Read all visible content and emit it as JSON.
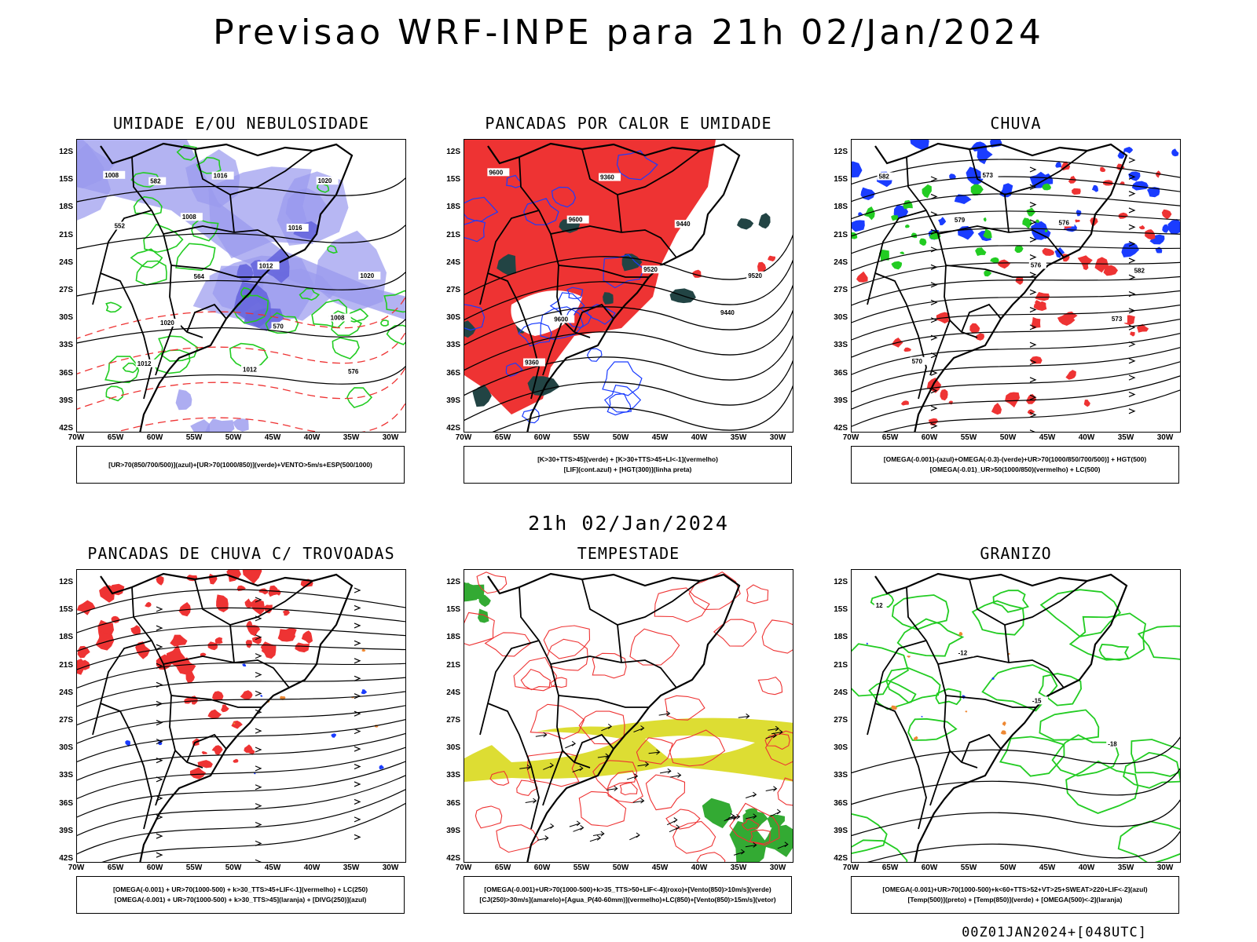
{
  "header": {
    "title": "Previsao WRF-INPE  para 21h 02/Jan/2024",
    "mid_title": "21h 02/Jan/2024",
    "footer_stamp": "00Z01JAN2024+[048UTC]"
  },
  "axes": {
    "lat_labels": [
      "12S",
      "15S",
      "18S",
      "21S",
      "24S",
      "27S",
      "30S",
      "33S",
      "36S",
      "39S",
      "42S"
    ],
    "lon_labels": [
      "70W",
      "65W",
      "60W",
      "55W",
      "50W",
      "45W",
      "40W",
      "35W",
      "30W"
    ]
  },
  "colors": {
    "humid_blue": "#9999ee",
    "dense_blue": "#6666dd",
    "green_contour": "#22cc22",
    "red": "#ee3333",
    "teal": "#224444",
    "yellow": "#dddd33",
    "rain_blue": "#1a3cff",
    "orange": "#ee8833"
  },
  "panels": [
    {
      "title": "UMIDADE E/OU NEBULOSIDADE",
      "legend": [
        "[UR>70(850/700/500)](azul)+[UR>70(1000/850)](verde)+VENTO>5m/s+ESP(500/1000)"
      ],
      "contour_labels": [
        "1008",
        "1008",
        "1012",
        "1008",
        "1012",
        "1016",
        "1016",
        "1020",
        "1020",
        "1012",
        "1020",
        "552",
        "564",
        "570",
        "576",
        "582"
      ]
    },
    {
      "title": "PANCADAS POR CALOR E UMIDADE",
      "legend": [
        "[K>30+TTS>45](verde) + [K>30+TTS>45+LI<-1](vermelho)",
        "[LIF](cont.azul) + [HGT(300)](linha preta)"
      ],
      "contour_labels": [
        "9600",
        "9600",
        "9520",
        "9440",
        "9360",
        "9360",
        "9440",
        "9520",
        "9600"
      ]
    },
    {
      "title": "CHUVA",
      "legend": [
        "[OMEGA(-0.001)-(azul)+OMEGA(-0.3)-(verde)+UR>70(1000/850/700/500)] + HGT(500)",
        "[OMEGA(-0.01)_UR>50(1000/850)(vermelho) + LC(500)"
      ],
      "contour_labels": [
        "582",
        "579",
        "576",
        "573",
        "570",
        "573",
        "576",
        "582"
      ]
    },
    {
      "title": "PANCADAS DE CHUVA C/ TROVOADAS",
      "legend": [
        "[OMEGA(-0.001) + UR>70(1000-500) + k>30_TTS>45+LIF<-1](vermelho) + LC(250)",
        "[OMEGA(-0.001) + UR>70(1000-500) + k>30_TTS>45](laranja) + [DIVG(250)](azul)"
      ],
      "contour_labels": []
    },
    {
      "title": "TEMPESTADE",
      "legend": [
        "[OMEGA(-0.001)+UR>70(1000-500)+k>35_TTS>50+LIF<-4](roxo)+[Vento(850)>10m/s](verde)",
        "[CJ(250)>30m/s](amarelo)+[Agua_P(40-60mm)](vermelho)+LC(850)+[Vento(850)>15m/s](vetor)"
      ],
      "contour_labels": []
    },
    {
      "title": "GRANIZO",
      "legend": [
        "[OMEGA(-0.001)+UR>70(1000-500)+k<60+TTS>52+VT>25+SWEAT>220+LIF<-2](azul)",
        "[Temp(500)](preto) + [Temp(850)](verde) + [OMEGA(500)<-2](laranja)"
      ],
      "contour_labels": [
        "12",
        "-12",
        "-15",
        "-18"
      ]
    }
  ]
}
